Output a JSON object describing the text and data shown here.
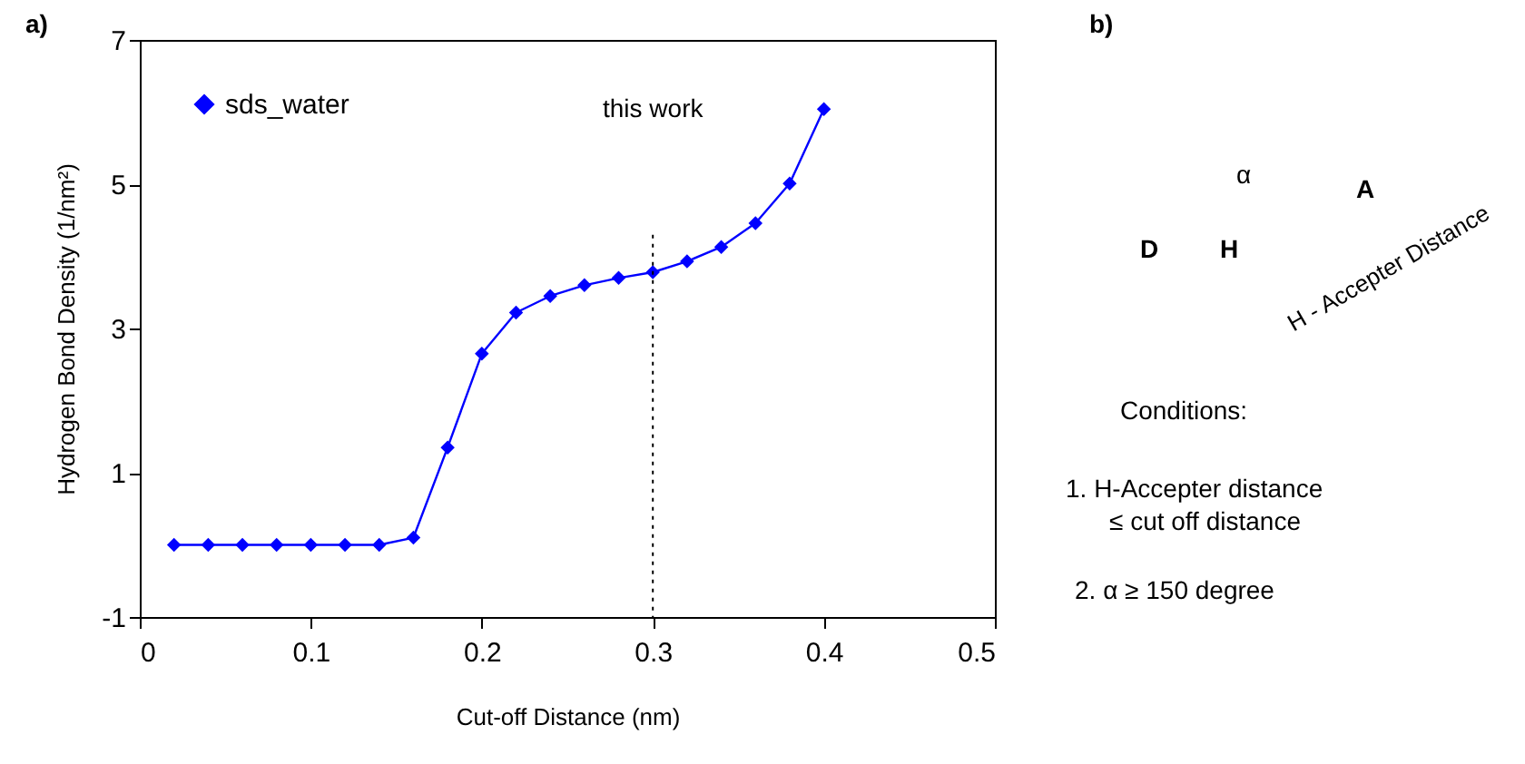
{
  "chart_data": {
    "type": "line",
    "xlabel": "Cut-off Distance (nm)",
    "ylabel": "Hydrogen Bond Density (1/nm²)",
    "x": [
      0.02,
      0.04,
      0.06,
      0.08,
      0.1,
      0.12,
      0.14,
      0.16,
      0.18,
      0.2,
      0.22,
      0.24,
      0.26,
      0.28,
      0.3,
      0.32,
      0.34,
      0.36,
      0.38,
      0.4
    ],
    "series": [
      {
        "name": "sds_water",
        "color": "#0000ff",
        "values": [
          0,
          0,
          0,
          0,
          0,
          0,
          0,
          0.1,
          1.35,
          2.65,
          3.22,
          3.45,
          3.6,
          3.7,
          3.78,
          3.93,
          4.13,
          4.46,
          5.01,
          6.04
        ]
      }
    ],
    "xlim": [
      0,
      0.5
    ],
    "xticks": [
      0,
      0.1,
      0.2,
      0.3,
      0.4,
      0.5
    ],
    "ylim": [
      -1,
      7
    ],
    "yticks": [
      -1,
      1,
      3,
      5,
      7
    ],
    "grid": false,
    "legend": "top left",
    "marker": "diamond",
    "line_style": "solid",
    "ref_lines": [
      {
        "axis": "x",
        "value": 0.3,
        "label": "this work",
        "line_style": "dotted",
        "color": "#000000"
      }
    ],
    "annotations": [
      "a)",
      "b)",
      "α",
      "D",
      "H",
      "A",
      "H - Accepter Distance",
      "Conditions:",
      "1.  H-Accepter distance",
      "≤ cut off distance",
      "2. α ≥ 150 degree"
    ]
  }
}
